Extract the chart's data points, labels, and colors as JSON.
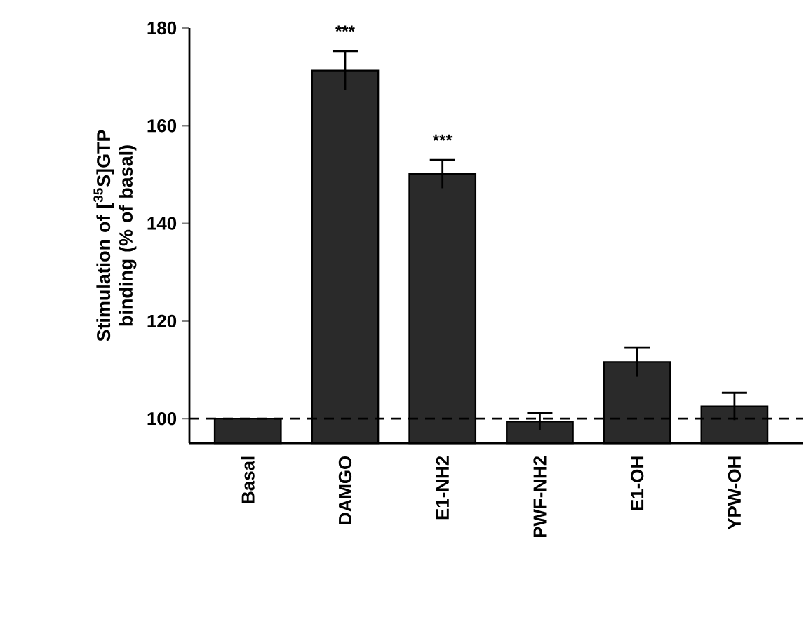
{
  "chart_data": {
    "type": "bar",
    "ylabel": "Stimulation of [$^{35}$S]GTP binding (% of basal)",
    "categories": [
      "Basal",
      "DAMGO",
      "E1-NH2",
      "PWF-NH2",
      "E1-OH",
      "YPW-OH"
    ],
    "values": [
      100,
      171.3,
      150.1,
      99.4,
      111.6,
      102.5
    ],
    "errors": [
      null,
      4,
      2.9,
      1.8,
      2.9,
      2.8
    ],
    "color": "#2a2a2a",
    "ylim": [
      95,
      180
    ],
    "yticks": [
      100,
      120,
      140,
      160,
      180
    ],
    "ref_lines": [
      {
        "axis": "y",
        "value": 100,
        "line_style": "dashed"
      }
    ],
    "annotations": [
      {
        "text": "***",
        "x": "DAMGO",
        "y": 175.3
      },
      {
        "text": "***",
        "x": "E1-NH2",
        "y": 153
      }
    ]
  }
}
